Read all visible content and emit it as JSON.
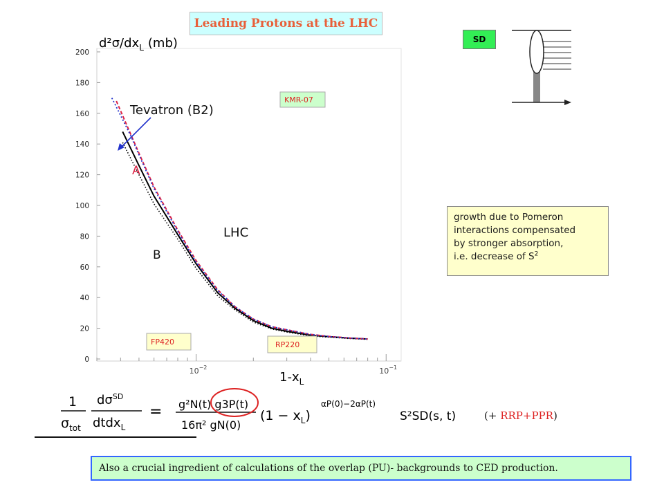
{
  "title": "Leading Protons  at the LHC",
  "sd_badge": "SD",
  "note": {
    "lines": [
      "growth due to Pomeron",
      "interactions compensated",
      "by stronger absorption,",
      "i.e. decrease of S"
    ],
    "sup": "2"
  },
  "bottom_note": "Also a crucial ingredient of calculations of the overlap (PU)- backgrounds to CED production.",
  "rrp": {
    "open": "(+ ",
    "text": "RRP+PPR",
    "close": ")"
  },
  "formula": {
    "lhs_num": "1",
    "lhs_den": "σ",
    "lhs_den_sub": "tot",
    "rhs_num_num": "dσ",
    "rhs_num_sup": "SD",
    "rhs_den": "dtdx",
    "rhs_den_sub": "L",
    "equals": "=",
    "coef_num": "g²N(t) g3P(t)",
    "coef_den": "16π² gN(0)",
    "factor": "(1 − x",
    "factor_sub": "L",
    "factor_close": ")",
    "exponent": "αP(0)−2αP(t)",
    "supp": "S²SD(s, t)"
  },
  "chart_data": {
    "type": "line",
    "ylabel": "d²σ/dx",
    "ylabel_sub": "L",
    "ylabel_unit": "(mb)",
    "xlabel": "1-x",
    "xlabel_sub": "L",
    "x_scale": "log",
    "xlim": [
      0.003,
      0.12
    ],
    "ylim": [
      0,
      200
    ],
    "y_ticks": [
      0,
      20,
      40,
      60,
      80,
      100,
      120,
      140,
      160,
      180,
      200
    ],
    "x_ticks": [
      {
        "value": 0.01,
        "label": "10",
        "exp": "−2"
      },
      {
        "value": 0.1,
        "label": "10",
        "exp": "−1"
      }
    ],
    "annotations": {
      "tevatron": "Tevatron (B2)",
      "a": "A",
      "b": "B",
      "lhc": "LHC",
      "kmr": "KMR-07",
      "fp420": "FP420",
      "rp220": "RP220"
    },
    "colors": {
      "red": "#dd2244",
      "blue": "#2233cc",
      "black": "#000000"
    },
    "series": [
      {
        "style": "black-solid",
        "x": [
          0.0041,
          0.005,
          0.006,
          0.008,
          0.01,
          0.013,
          0.016,
          0.02,
          0.025,
          0.03,
          0.04,
          0.05,
          0.065,
          0.08
        ],
        "y": [
          148,
          126,
          106,
          81,
          62,
          43,
          33,
          25,
          20,
          18,
          15.5,
          14.5,
          13.5,
          13
        ]
      },
      {
        "style": "black-dotted",
        "x": [
          0.0041,
          0.005,
          0.006,
          0.008,
          0.01,
          0.013,
          0.016,
          0.02,
          0.025,
          0.03,
          0.04,
          0.05,
          0.065,
          0.08
        ],
        "y": [
          141,
          120,
          101,
          78,
          59,
          41,
          32,
          24,
          19.5,
          17.5,
          15,
          14.2,
          13.3,
          12.8
        ]
      },
      {
        "style": "red-dashed",
        "x": [
          0.0038,
          0.0045,
          0.005,
          0.006,
          0.008,
          0.01,
          0.013,
          0.016,
          0.02,
          0.025,
          0.03,
          0.04,
          0.05,
          0.065,
          0.08
        ],
        "y": [
          168,
          147,
          134,
          112,
          84,
          64,
          45,
          34,
          26,
          21,
          19,
          16,
          14.7,
          13.6,
          13
        ]
      },
      {
        "style": "blue-dotted",
        "x": [
          0.0036,
          0.0045,
          0.005,
          0.006,
          0.008,
          0.01,
          0.013,
          0.016,
          0.02,
          0.025,
          0.03,
          0.04,
          0.05,
          0.065,
          0.08
        ],
        "y": [
          170,
          146,
          133,
          111,
          83,
          63,
          44.5,
          34,
          26,
          21,
          19,
          16,
          14.6,
          13.6,
          13
        ]
      }
    ]
  }
}
